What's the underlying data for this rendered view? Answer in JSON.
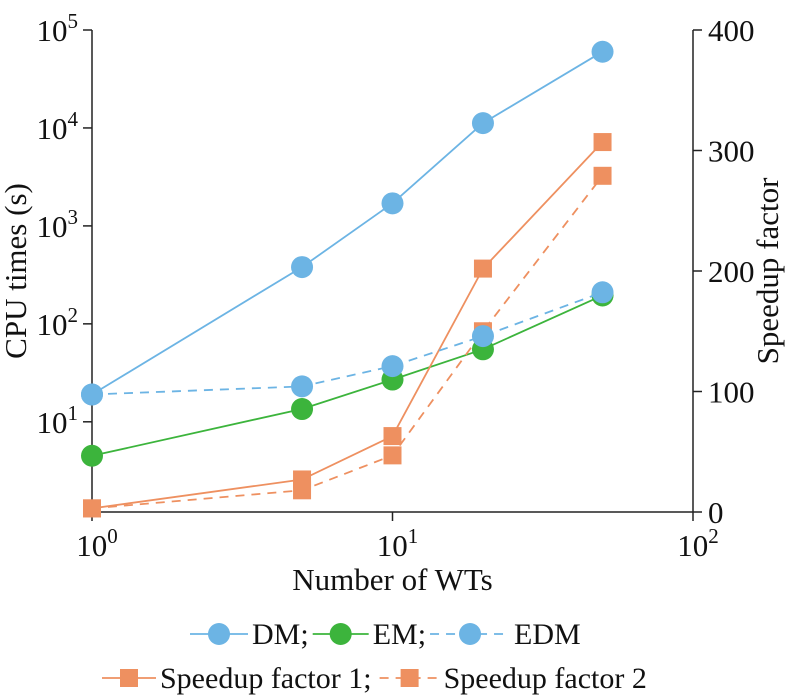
{
  "chart_data": {
    "type": "line",
    "xlabel": "Number of WTs",
    "ylabel_left": "CPU times (s)",
    "ylabel_right": "Speedup factor",
    "x_scale": "log",
    "xlim": [
      1,
      100
    ],
    "x_ticks": [
      {
        "value": 1,
        "base": "10",
        "exp": "0"
      },
      {
        "value": 10,
        "base": "10",
        "exp": "1"
      },
      {
        "value": 100,
        "base": "10",
        "exp": "2"
      }
    ],
    "y_left_scale": "log",
    "y_left_lim": [
      1.2,
      100000
    ],
    "y_left_ticks": [
      {
        "value": 10,
        "base": "10",
        "exp": "1"
      },
      {
        "value": 100,
        "base": "10",
        "exp": "2"
      },
      {
        "value": 1000,
        "base": "10",
        "exp": "3"
      },
      {
        "value": 10000,
        "base": "10",
        "exp": "4"
      },
      {
        "value": 100000,
        "base": "10",
        "exp": "5"
      }
    ],
    "y_right_scale": "linear",
    "y_right_lim": [
      0,
      400
    ],
    "y_right_ticks": [
      {
        "value": 0,
        "label": "0"
      },
      {
        "value": 100,
        "label": "100"
      },
      {
        "value": 200,
        "label": "200"
      },
      {
        "value": 300,
        "label": "300"
      },
      {
        "value": 400,
        "label": "400"
      }
    ],
    "grid": false,
    "legend_position": "bottom",
    "series": [
      {
        "name": "DM",
        "legend_label": "DM;",
        "axis": "left",
        "color": "#6cb4e4",
        "marker": "circle",
        "dash": "solid",
        "x": [
          1,
          5,
          10,
          20,
          50
        ],
        "y": [
          19,
          380,
          1700,
          11200,
          60000
        ]
      },
      {
        "name": "EM",
        "legend_label": "EM;",
        "axis": "left",
        "color": "#3cb43c",
        "marker": "circle",
        "dash": "solid",
        "x": [
          1,
          5,
          10,
          20,
          50
        ],
        "y": [
          4.5,
          13.5,
          27,
          55,
          195
        ]
      },
      {
        "name": "EDM",
        "legend_label": "EDM",
        "axis": "left",
        "color": "#6cb4e4",
        "marker": "circle",
        "dash": "dashed",
        "x": [
          1,
          5,
          10,
          20,
          50
        ],
        "y": [
          19,
          23,
          37,
          75,
          210
        ]
      },
      {
        "name": "Speedup factor 1",
        "legend_label": "Speedup factor 1;",
        "axis": "right",
        "color": "#ee9060",
        "marker": "square",
        "dash": "solid",
        "x": [
          1,
          5,
          10,
          20,
          50
        ],
        "y": [
          3,
          27,
          63,
          202,
          307
        ]
      },
      {
        "name": "Speedup factor 2",
        "legend_label": "Speedup factor 2",
        "axis": "right",
        "color": "#ee9060",
        "marker": "square",
        "dash": "dashed",
        "x": [
          1,
          5,
          10,
          20,
          50
        ],
        "y": [
          3,
          18,
          47,
          150,
          279
        ]
      }
    ]
  }
}
